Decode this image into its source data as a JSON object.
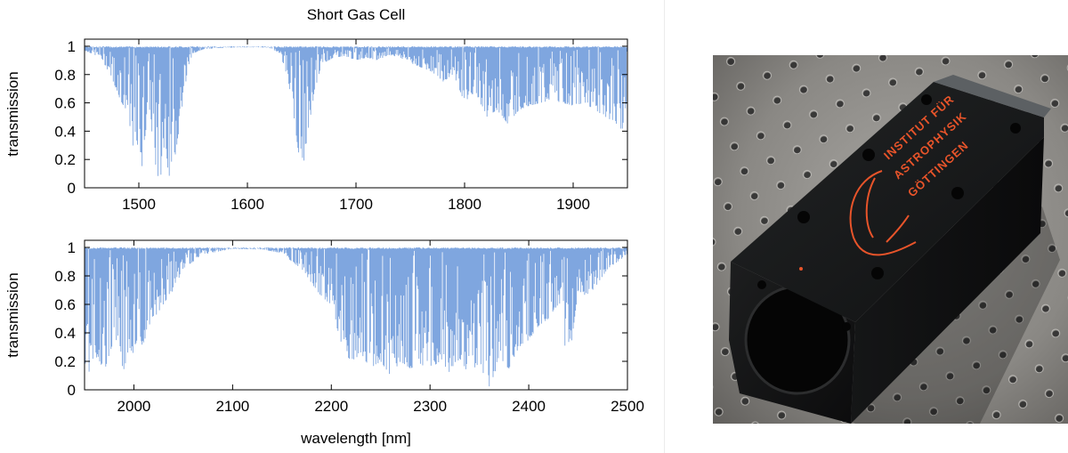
{
  "figure_title": "Short Gas Cell",
  "x_axis_label": "wavelength [nm]",
  "photo": {
    "engraving_lines": [
      "INSTITUT FÜR",
      "ASTROPHYSIK",
      "GÖTTINGEN"
    ],
    "colors": {
      "body": "#151617",
      "engraving": "#e8542a",
      "table": "#8f8d89"
    }
  },
  "colors": {
    "series": "#7fa6df",
    "axes": "#000000"
  },
  "chart_data": [
    {
      "type": "line",
      "title": "Short Gas Cell",
      "xlabel": "",
      "ylabel": "transmission",
      "xlim": [
        1450,
        1950
      ],
      "ylim": [
        0,
        1.05
      ],
      "xticks": [
        1500,
        1600,
        1700,
        1800,
        1900
      ],
      "yticks": [
        0,
        0.2,
        0.4,
        0.6,
        0.8,
        1
      ],
      "ytick_labels": [
        "0",
        "0.2",
        "0.4",
        "0.6",
        "0.8",
        "1"
      ],
      "grid": false,
      "series": [
        {
          "x": [
            1450,
            1465,
            1475,
            1483,
            1488,
            1493,
            1497,
            1500,
            1503,
            1507,
            1510,
            1513,
            1516,
            1518,
            1520,
            1522,
            1525,
            1527,
            1529,
            1531,
            1534,
            1537,
            1540,
            1545,
            1550,
            1560,
            1580,
            1600,
            1620,
            1630,
            1637,
            1642,
            1647,
            1650,
            1653,
            1656,
            1660,
            1665,
            1670,
            1680,
            1690,
            1700,
            1710,
            1720,
            1730,
            1740,
            1750,
            1760,
            1770,
            1780,
            1790,
            1800,
            1810,
            1820,
            1830,
            1840,
            1850,
            1860,
            1870,
            1880,
            1890,
            1900,
            1910,
            1920,
            1930,
            1940,
            1945,
            1950
          ],
          "y": [
            0.97,
            0.92,
            0.78,
            0.62,
            0.55,
            0.4,
            0.14,
            0.35,
            0.15,
            0.45,
            0.55,
            0.3,
            0.12,
            0.05,
            0.08,
            0.15,
            0.3,
            0.1,
            0.07,
            0.12,
            0.25,
            0.4,
            0.55,
            0.85,
            0.95,
            0.98,
            0.99,
            0.995,
            0.99,
            0.95,
            0.78,
            0.55,
            0.25,
            0.22,
            0.18,
            0.4,
            0.6,
            0.78,
            0.88,
            0.92,
            0.93,
            0.9,
            0.92,
            0.9,
            0.94,
            0.92,
            0.88,
            0.85,
            0.82,
            0.75,
            0.8,
            0.6,
            0.68,
            0.5,
            0.55,
            0.45,
            0.55,
            0.58,
            0.6,
            0.62,
            0.6,
            0.58,
            0.6,
            0.55,
            0.5,
            0.45,
            0.4,
            0.65
          ]
        }
      ]
    },
    {
      "type": "line",
      "xlabel": "wavelength [nm]",
      "ylabel": "transmission",
      "xlim": [
        1950,
        2500
      ],
      "ylim": [
        0,
        1.05
      ],
      "xticks": [
        2000,
        2100,
        2200,
        2300,
        2400,
        2500
      ],
      "yticks": [
        0,
        0.2,
        0.4,
        0.6,
        0.8,
        1
      ],
      "ytick_labels": [
        "0",
        "0.2",
        "0.4",
        "0.6",
        "0.8",
        "1"
      ],
      "grid": false,
      "series": [
        {
          "x": [
            1950,
            1955,
            1960,
            1965,
            1970,
            1975,
            1980,
            1985,
            1990,
            1995,
            2000,
            2005,
            2010,
            2015,
            2020,
            2030,
            2040,
            2050,
            2070,
            2100,
            2130,
            2150,
            2160,
            2170,
            2180,
            2190,
            2200,
            2210,
            2220,
            2230,
            2240,
            2250,
            2260,
            2270,
            2280,
            2290,
            2300,
            2310,
            2320,
            2330,
            2340,
            2350,
            2360,
            2370,
            2380,
            2390,
            2400,
            2410,
            2420,
            2430,
            2440,
            2450,
            2460,
            2470,
            2480,
            2490,
            2500
          ],
          "y": [
            0.2,
            0.1,
            0.25,
            0.2,
            0.12,
            0.25,
            0.35,
            0.3,
            0.1,
            0.3,
            0.25,
            0.35,
            0.3,
            0.45,
            0.5,
            0.6,
            0.7,
            0.85,
            0.95,
            0.99,
            0.985,
            0.96,
            0.9,
            0.85,
            0.75,
            0.65,
            0.6,
            0.3,
            0.2,
            0.25,
            0.15,
            0.2,
            0.1,
            0.2,
            0.15,
            0.18,
            0.15,
            0.2,
            0.12,
            0.22,
            0.1,
            0.18,
            0.02,
            0.2,
            0.15,
            0.3,
            0.35,
            0.45,
            0.5,
            0.6,
            0.15,
            0.7,
            0.65,
            0.75,
            0.85,
            0.9,
            0.95
          ]
        }
      ]
    }
  ]
}
